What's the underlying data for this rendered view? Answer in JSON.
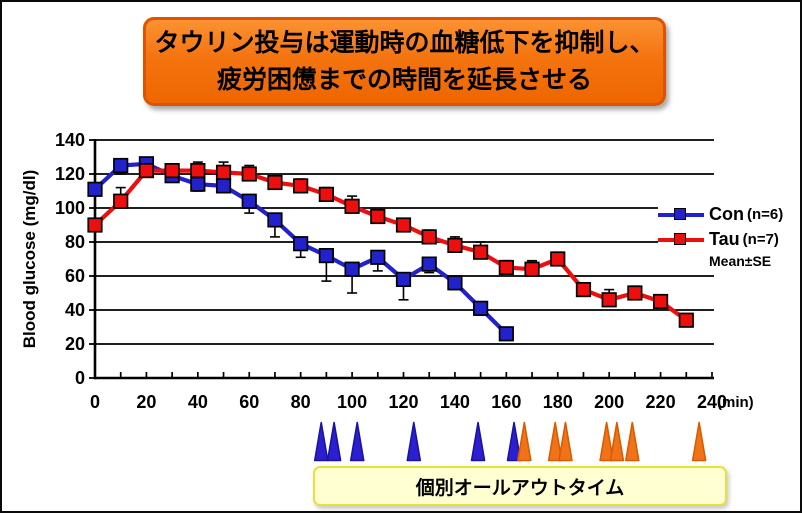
{
  "page": {
    "background": "#ffffff",
    "border_color": "#0a0a0a"
  },
  "title": {
    "line1": "タウリン投与は運動時の血糖低下を抑制し、",
    "line2": "疲労困憊までの時間を延長させる",
    "bg_top": "#fb9232",
    "bg_bottom": "#ee6600",
    "border_color": "#de5200",
    "text_color": "#000000"
  },
  "legend": {
    "items": [
      {
        "label": "Con",
        "suffix": "(n=6)",
        "color": "#2222cc"
      },
      {
        "label": "Tau",
        "suffix": "(n=7)",
        "color": "#ee0e0e"
      }
    ],
    "note": "Mean±SE"
  },
  "footer_box": {
    "label": "個別オールアウトタイム",
    "bg": "#ffffd2",
    "border_color": "#e9e03a"
  },
  "chart_data": {
    "type": "line",
    "title": "",
    "xlabel": "(min)",
    "ylabel": "Blood glucose (mg/dl)",
    "xlim": [
      0,
      240
    ],
    "ylim": [
      0,
      140
    ],
    "x_major_ticks": [
      0,
      20,
      40,
      60,
      80,
      100,
      120,
      140,
      160,
      180,
      200,
      220,
      240
    ],
    "x_minor_step": 10,
    "y_ticks": [
      0,
      20,
      40,
      60,
      80,
      100,
      120,
      140
    ],
    "grid": true,
    "legend_position": "right",
    "series": [
      {
        "name": "Con (n=6)",
        "color": "#2222cc",
        "marker": "square",
        "errbar_dir": "down",
        "x": [
          0,
          10,
          20,
          30,
          40,
          50,
          60,
          70,
          80,
          90,
          100,
          110,
          120,
          130,
          140,
          150,
          160
        ],
        "values": [
          111,
          125,
          126,
          119,
          114,
          113,
          104,
          93,
          79,
          72,
          64,
          71,
          58,
          67,
          56,
          41,
          26
        ],
        "se": [
          3,
          5,
          3,
          3,
          4,
          4,
          7,
          10,
          8,
          15,
          14,
          8,
          12,
          5,
          4,
          4,
          3
        ]
      },
      {
        "name": "Tau (n=7)",
        "color": "#ee0e0e",
        "marker": "square",
        "errbar_dir": "up",
        "x": [
          0,
          10,
          20,
          30,
          40,
          50,
          60,
          70,
          80,
          90,
          100,
          110,
          120,
          130,
          140,
          150,
          160,
          170,
          180,
          190,
          200,
          210,
          220,
          230
        ],
        "values": [
          90,
          104,
          122,
          122,
          122,
          121,
          120,
          115,
          113,
          108,
          101,
          95,
          90,
          83,
          78,
          74,
          65,
          64,
          70,
          52,
          46,
          50,
          45,
          34
        ],
        "se": [
          3,
          8,
          4,
          4,
          5,
          6,
          5,
          3,
          4,
          4,
          6,
          4,
          3,
          4,
          5,
          6,
          4,
          5,
          4,
          4,
          6,
          4,
          3,
          3
        ]
      }
    ],
    "allout_markers": {
      "description": "individual all-out time triangles on x-axis",
      "con_times": [
        88,
        93,
        102,
        124,
        149,
        163
      ],
      "con_color": "#2b1fd0",
      "tau_times": [
        167,
        179,
        183,
        199,
        203,
        209,
        235
      ],
      "tau_color": "#f0731a"
    }
  }
}
